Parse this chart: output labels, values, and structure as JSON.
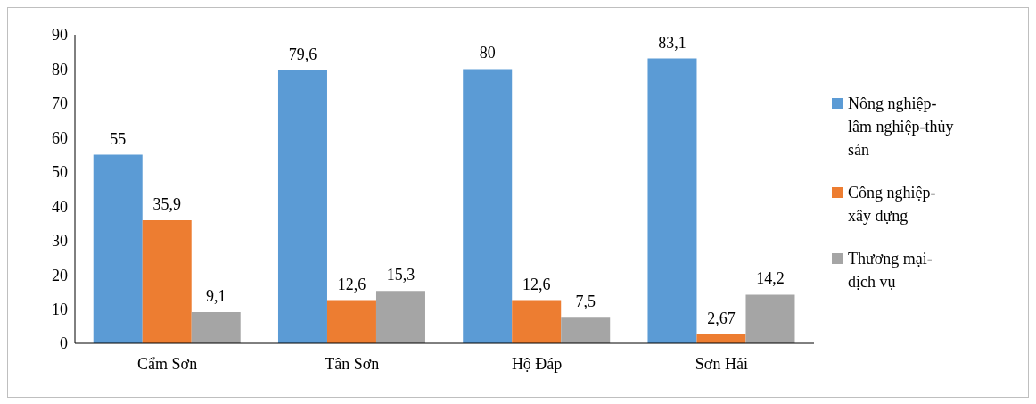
{
  "chart_data": {
    "type": "bar",
    "categories": [
      "Cẩm Sơn",
      "Tân Sơn",
      "Hộ Đáp",
      "Sơn Hải"
    ],
    "series": [
      {
        "name": "Nông nghiệp-lâm nghiệp-thủy sản",
        "color": "#5b9bd5",
        "values": [
          55,
          79.6,
          80,
          83.1
        ],
        "value_labels": [
          "55",
          "79,6",
          "80",
          "83,1"
        ]
      },
      {
        "name": "Công nghiệp-xây dựng",
        "color": "#ed7d31",
        "values": [
          35.9,
          12.6,
          12.6,
          2.67
        ],
        "value_labels": [
          "35,9",
          "12,6",
          "12,6",
          "2,67"
        ]
      },
      {
        "name": "Thương mại-dịch vụ",
        "color": "#a5a5a5",
        "values": [
          9.1,
          15.3,
          7.5,
          14.2
        ],
        "value_labels": [
          "9,1",
          "15,3",
          "7,5",
          "14,2"
        ]
      }
    ],
    "ylim": [
      0,
      90
    ],
    "yticks": [
      0,
      10,
      20,
      30,
      40,
      50,
      60,
      70,
      80,
      90
    ],
    "legend": "right"
  }
}
